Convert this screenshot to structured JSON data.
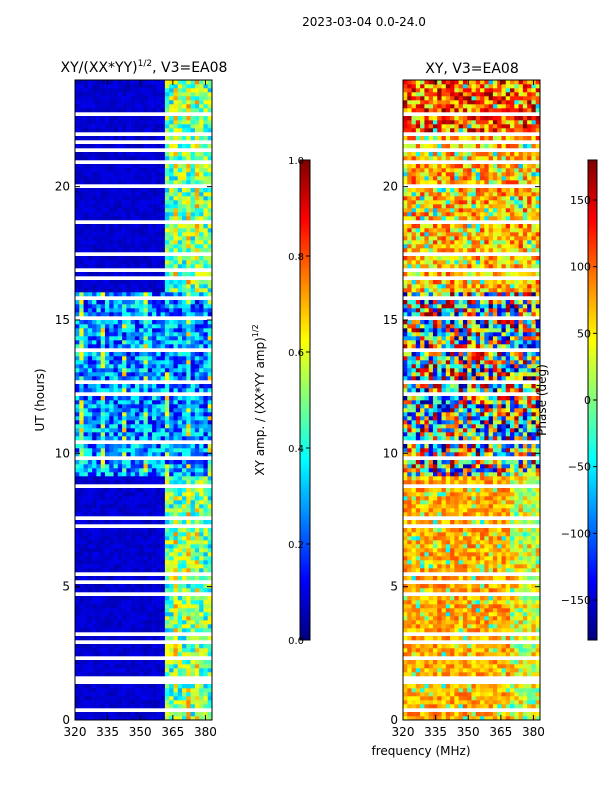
{
  "figure": {
    "suptitle": "2023-03-04 0.0-24.0",
    "xlabel": "frequency (MHz)",
    "ylabel": "UT (hours)"
  },
  "chart_data": [
    {
      "type": "heatmap",
      "title_main": "XY/(XX*YY)",
      "title_exp": "1/2",
      "title_rest": ", V3=EA08",
      "xlim": [
        320,
        383
      ],
      "ylim": [
        0,
        24
      ],
      "xticks": [
        320,
        335,
        350,
        365,
        380
      ],
      "yticks": [
        0,
        5,
        10,
        15,
        20
      ],
      "colorbar": {
        "label": "XY amp. / (XX*YY amp)",
        "label_exp": "1/2",
        "range": [
          0.0,
          1.0
        ],
        "ticks": [
          "0.0",
          "0.2",
          "0.4",
          "0.6",
          "0.8",
          "1.0"
        ],
        "colormap": "jet"
      }
    },
    {
      "type": "heatmap",
      "title": "XY, V3=EA08",
      "xlim": [
        320,
        383
      ],
      "ylim": [
        0,
        24
      ],
      "xticks": [
        320,
        335,
        350,
        365,
        380
      ],
      "yticks": [
        0,
        5,
        10,
        15,
        20
      ],
      "colorbar": {
        "label": "Phase (deg)",
        "range": [
          -180,
          180
        ],
        "ticks": [
          "−150",
          "−100",
          "−50",
          "0",
          "50",
          "100",
          "150"
        ],
        "colormap": "jet"
      }
    }
  ],
  "colors": {
    "jet": [
      "#00007f",
      "#0000ff",
      "#0080ff",
      "#00ffff",
      "#80ff80",
      "#ffff00",
      "#ff8000",
      "#ff0000",
      "#7f0000"
    ]
  }
}
